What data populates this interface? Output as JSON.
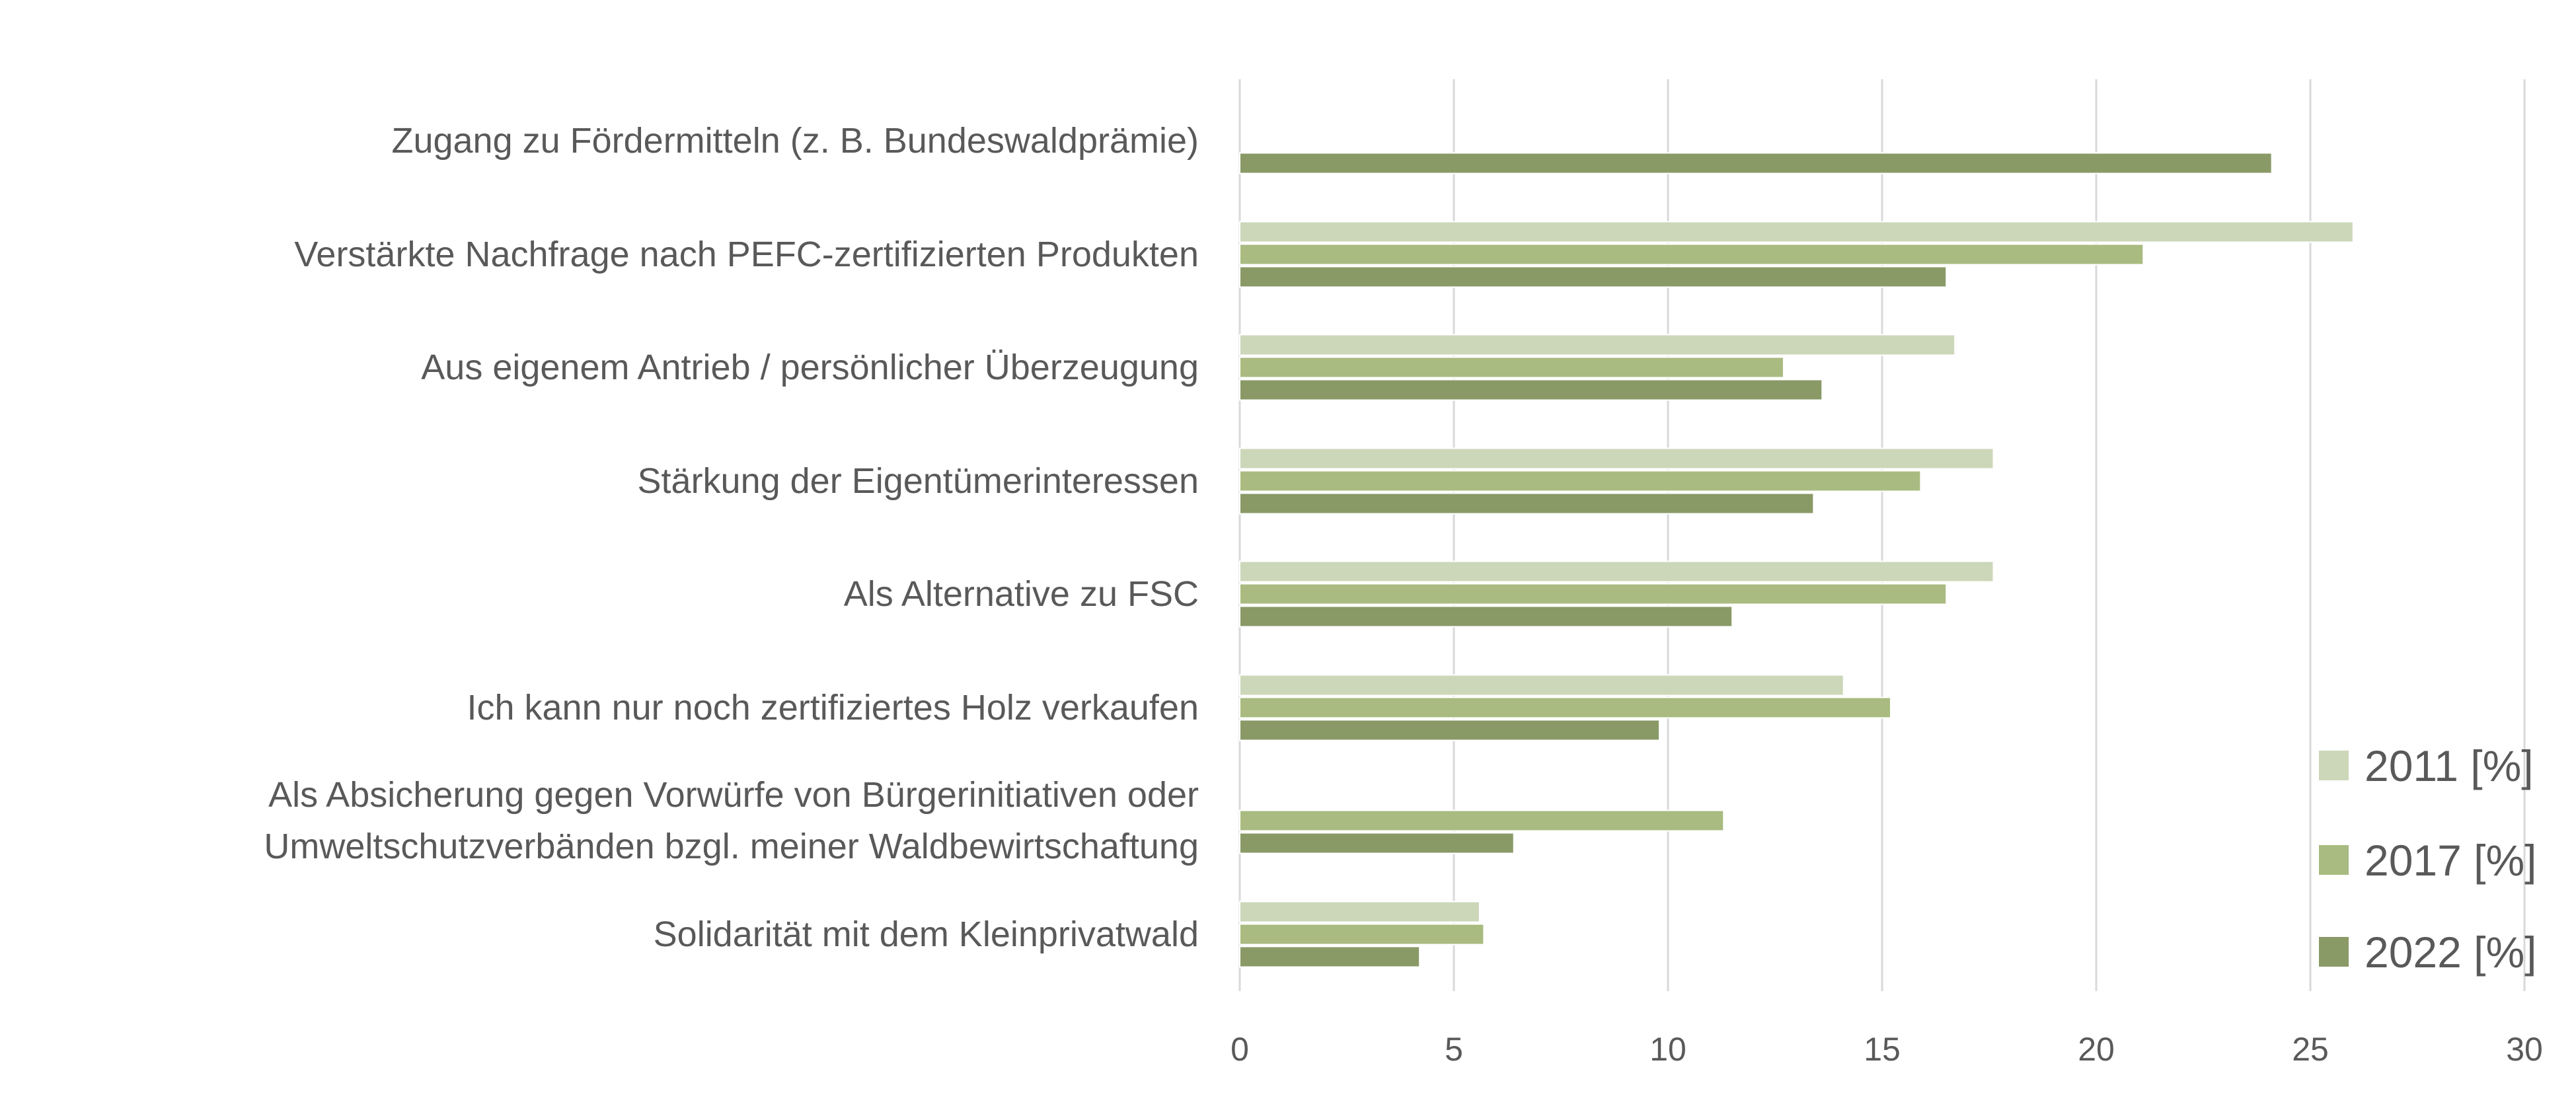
{
  "chart_data": {
    "type": "bar",
    "orientation": "horizontal",
    "categories": [
      [
        "Zugang zu Fördermitteln (z. B. Bundeswaldprämie)"
      ],
      [
        "Verstärkte Nachfrage nach PEFC-zertifizierten Produkten"
      ],
      [
        "Aus eigenem Antrieb / persönlicher Überzeugung"
      ],
      [
        "Stärkung der Eigentümerinteressen"
      ],
      [
        "Als Alternative zu FSC"
      ],
      [
        "Ich kann nur noch zertifiziertes Holz verkaufen"
      ],
      [
        "Als Absicherung gegen Vorwürfe von Bürgerinitiativen oder",
        "Umweltschutzverbänden bzgl. meiner Waldbewirtschaftung"
      ],
      [
        "Solidarität mit dem Kleinprivatwald"
      ]
    ],
    "series": [
      {
        "name": "2011 [%]",
        "color": "#ccd7b9",
        "values": [
          null,
          26.0,
          16.7,
          17.6,
          17.6,
          14.1,
          null,
          5.6
        ]
      },
      {
        "name": "2017 [%]",
        "color": "#a9bb80",
        "values": [
          null,
          21.1,
          12.7,
          15.9,
          16.5,
          15.2,
          11.3,
          5.7
        ]
      },
      {
        "name": "2022 [%]",
        "color": "#8a9a67",
        "values": [
          24.1,
          16.5,
          13.6,
          13.4,
          11.5,
          9.8,
          6.4,
          4.2
        ]
      }
    ],
    "xlim": [
      0,
      30
    ],
    "xticks": [
      0,
      5,
      10,
      15,
      20,
      25,
      30
    ],
    "xlabel": "",
    "ylabel": "",
    "grid": "vertical",
    "legend_position": "right"
  }
}
